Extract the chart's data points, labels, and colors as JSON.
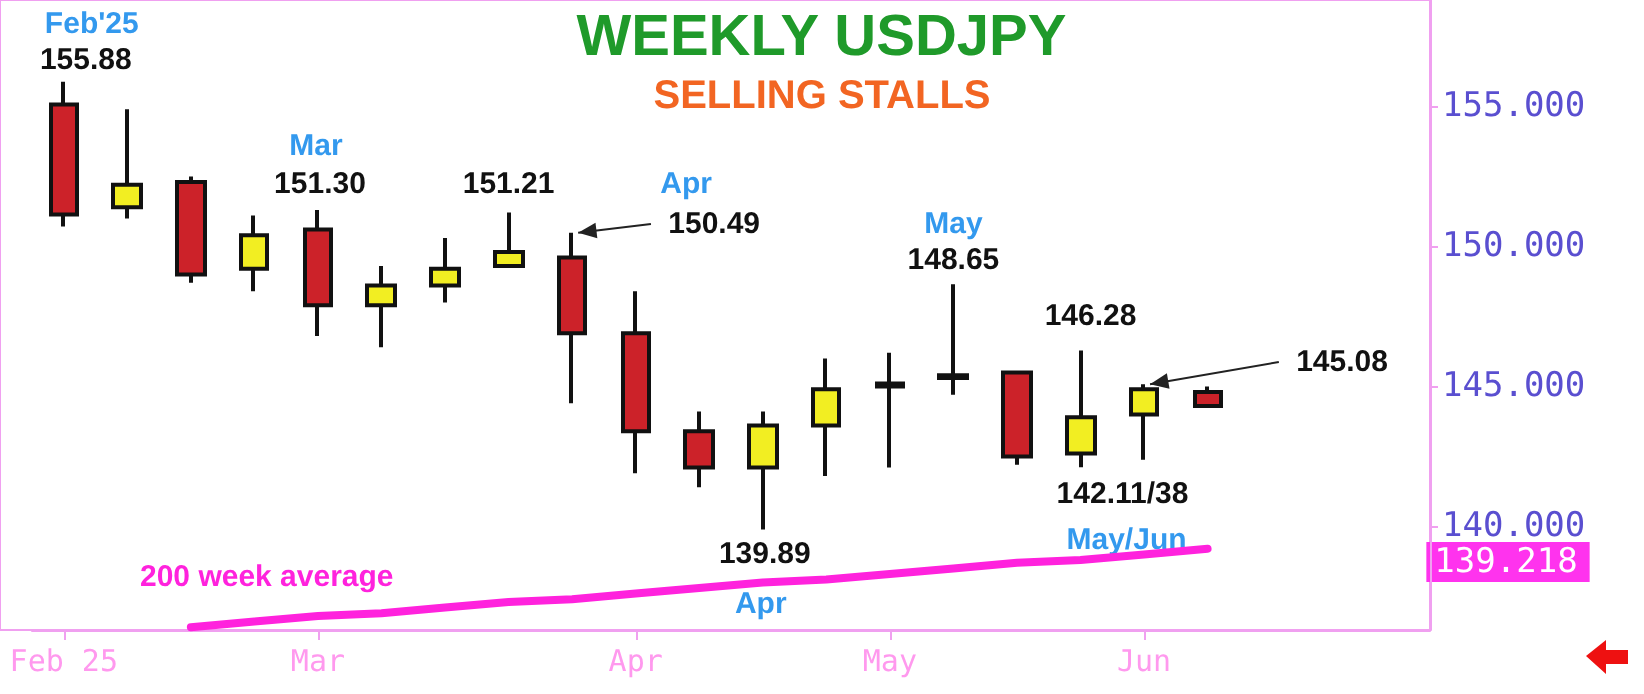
{
  "chart_data": {
    "type": "candlestick",
    "title": "WEEKLY USDJPY",
    "subtitle": "SELLING STALLS",
    "categories": [
      "Feb 25",
      null,
      null,
      null,
      "Mar",
      null,
      null,
      null,
      null,
      "Apr",
      null,
      null,
      null,
      "May",
      null,
      null,
      null,
      "Jun",
      null
    ],
    "ohlc": [
      [
        155.07,
        155.88,
        150.71,
        151.14
      ],
      [
        151.4,
        154.9,
        151.0,
        152.2
      ],
      [
        152.3,
        152.5,
        148.7,
        149.0
      ],
      [
        149.2,
        151.1,
        148.4,
        150.4
      ],
      [
        150.6,
        151.3,
        146.8,
        147.9
      ],
      [
        147.9,
        149.3,
        146.4,
        148.6
      ],
      [
        148.6,
        150.3,
        148.0,
        149.2
      ],
      [
        149.3,
        151.21,
        149.3,
        149.8
      ],
      [
        149.6,
        150.49,
        144.4,
        146.9
      ],
      [
        146.9,
        148.4,
        141.9,
        143.4
      ],
      [
        143.4,
        144.1,
        141.4,
        142.1
      ],
      [
        142.1,
        144.1,
        139.89,
        143.6
      ],
      [
        143.6,
        146.0,
        141.8,
        144.9
      ],
      [
        145.0,
        146.2,
        142.1,
        145.1
      ],
      [
        145.3,
        148.65,
        144.7,
        145.4
      ],
      [
        145.5,
        145.5,
        142.2,
        142.5
      ],
      [
        142.6,
        146.28,
        142.11,
        143.9
      ],
      [
        144.0,
        145.08,
        142.38,
        144.9
      ],
      [
        144.8,
        145.0,
        144.3,
        144.3
      ]
    ],
    "colors": [
      "#cc2229",
      "#f2ee22",
      "#cc2229",
      "#f2ee22",
      "#cc2229",
      "#f2ee22",
      "#f2ee22",
      "#f2ee22",
      "#cc2229",
      "#cc2229",
      "#cc2229",
      "#f2ee22",
      "#f2ee22",
      "#f2ee22",
      "#f2ee22",
      "#cc2229",
      "#f2ee22",
      "#f2ee22",
      "#cc2229"
    ],
    "series": [
      {
        "type": "line",
        "name": "200 week average",
        "color": "#ff22dd",
        "values": [
          null,
          null,
          136.4,
          136.6,
          136.8,
          136.9,
          137.1,
          137.3,
          137.4,
          137.6,
          137.8,
          138.0,
          138.1,
          138.3,
          138.5,
          138.7,
          138.8,
          139.0,
          139.2
        ]
      }
    ],
    "ylim": [
      136.3,
      158.8
    ],
    "yticks": [
      {
        "value": 140,
        "label": "140.000"
      },
      {
        "value": 145,
        "label": "145.000"
      },
      {
        "value": 150,
        "label": "150.000"
      },
      {
        "value": 155,
        "label": "155.000"
      }
    ],
    "annotations": [
      "Feb'25",
      "155.88",
      "Mar",
      "151.30",
      "151.21",
      "Apr",
      "150.49",
      "139.89",
      "Apr",
      "May",
      "148.65",
      "146.28",
      "142.11/38",
      "May/Jun",
      {
        "text": "145.08",
        "x": "Jun",
        "y": 145.08
      },
      "139.218"
    ],
    "grid": false,
    "legend": false,
    "marker": "none",
    "line_style": "solid"
  }
}
